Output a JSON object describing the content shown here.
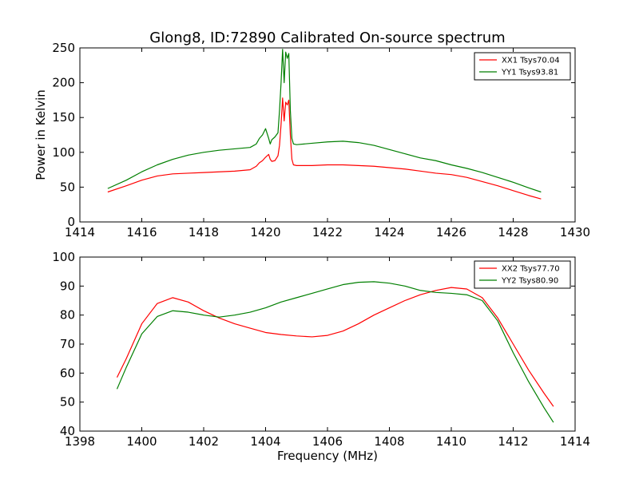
{
  "figure_title": "Glong8, ID:72890 Calibrated On-source spectrum",
  "colors": {
    "red": "#ff0000",
    "green": "#007f00",
    "axis": "#000000"
  },
  "chart_data": [
    {
      "type": "line",
      "title": "Glong8, ID:72890 Calibrated On-source spectrum",
      "xlabel": "",
      "ylabel": "Power in Kelvin",
      "xlim": [
        1414,
        1430
      ],
      "ylim": [
        0,
        250
      ],
      "xticks": [
        1414,
        1416,
        1418,
        1420,
        1422,
        1424,
        1426,
        1428,
        1430
      ],
      "yticks": [
        0,
        50,
        100,
        150,
        200,
        250
      ],
      "grid": false,
      "legend_position": "top-right",
      "series": [
        {
          "name": "XX1 Tsys70.04",
          "color": "#ff0000",
          "x": [
            1414.9,
            1415.5,
            1416.0,
            1416.5,
            1417.0,
            1417.5,
            1418.0,
            1418.5,
            1419.0,
            1419.5,
            1419.7,
            1419.8,
            1419.9,
            1420.0,
            1420.1,
            1420.15,
            1420.2,
            1420.3,
            1420.4,
            1420.45,
            1420.5,
            1420.55,
            1420.6,
            1420.65,
            1420.7,
            1420.75,
            1420.8,
            1420.85,
            1420.9,
            1421.0,
            1421.5,
            1422.0,
            1422.5,
            1423.0,
            1423.5,
            1424.0,
            1424.5,
            1425.0,
            1425.5,
            1426.0,
            1426.5,
            1427.0,
            1427.5,
            1428.0,
            1428.5,
            1428.9
          ],
          "y": [
            43,
            52,
            60,
            66,
            69,
            70,
            71,
            72,
            73,
            75,
            80,
            85,
            88,
            93,
            97,
            90,
            87,
            88,
            95,
            110,
            140,
            178,
            145,
            172,
            168,
            175,
            125,
            90,
            82,
            81,
            81,
            82,
            82,
            81,
            80,
            78,
            76,
            73,
            70,
            68,
            64,
            58,
            52,
            45,
            38,
            33
          ]
        },
        {
          "name": "YY1 Tsys93.81",
          "color": "#007f00",
          "x": [
            1414.9,
            1415.5,
            1416.0,
            1416.5,
            1417.0,
            1417.5,
            1418.0,
            1418.5,
            1419.0,
            1419.5,
            1419.7,
            1419.8,
            1419.9,
            1420.0,
            1420.1,
            1420.15,
            1420.2,
            1420.3,
            1420.4,
            1420.45,
            1420.5,
            1420.55,
            1420.6,
            1420.65,
            1420.7,
            1420.75,
            1420.8,
            1420.85,
            1420.9,
            1421.0,
            1421.5,
            1422.0,
            1422.5,
            1423.0,
            1423.5,
            1424.0,
            1424.5,
            1425.0,
            1425.5,
            1426.0,
            1426.5,
            1427.0,
            1427.5,
            1428.0,
            1428.5,
            1428.9
          ],
          "y": [
            48,
            60,
            72,
            82,
            90,
            96,
            100,
            103,
            105,
            107,
            112,
            120,
            125,
            134,
            120,
            112,
            118,
            122,
            128,
            160,
            200,
            248,
            200,
            244,
            235,
            242,
            160,
            120,
            112,
            111,
            113,
            115,
            116,
            114,
            110,
            104,
            98,
            92,
            88,
            82,
            77,
            71,
            64,
            57,
            49,
            43
          ]
        }
      ]
    },
    {
      "type": "line",
      "title": "",
      "xlabel": "Frequency (MHz)",
      "ylabel": "",
      "xlim": [
        1398,
        1414
      ],
      "ylim": [
        40,
        100
      ],
      "xticks": [
        1398,
        1400,
        1402,
        1404,
        1406,
        1408,
        1410,
        1412,
        1414
      ],
      "yticks": [
        40,
        50,
        60,
        70,
        80,
        90,
        100
      ],
      "grid": false,
      "legend_position": "top-right",
      "series": [
        {
          "name": "XX2 Tsys77.70",
          "color": "#ff0000",
          "x": [
            1399.2,
            1399.5,
            1400.0,
            1400.5,
            1401.0,
            1401.5,
            1402.0,
            1402.5,
            1403.0,
            1403.5,
            1404.0,
            1404.5,
            1405.0,
            1405.5,
            1406.0,
            1406.5,
            1407.0,
            1407.5,
            1408.0,
            1408.5,
            1409.0,
            1409.5,
            1410.0,
            1410.5,
            1411.0,
            1411.5,
            1412.0,
            1412.5,
            1413.0,
            1413.3
          ],
          "y": [
            58.5,
            65,
            77,
            84,
            86,
            84.5,
            81.5,
            79,
            77,
            75.5,
            74,
            73.3,
            72.8,
            72.5,
            73,
            74.5,
            77,
            80,
            82.5,
            85,
            87,
            88.5,
            89.5,
            89,
            86,
            79,
            70,
            61,
            53,
            48.5
          ]
        },
        {
          "name": "YY2 Tsys80.90",
          "color": "#007f00",
          "x": [
            1399.2,
            1399.5,
            1400.0,
            1400.5,
            1401.0,
            1401.5,
            1402.0,
            1402.5,
            1403.0,
            1403.5,
            1404.0,
            1404.5,
            1405.0,
            1405.5,
            1406.0,
            1406.5,
            1407.0,
            1407.5,
            1408.0,
            1408.5,
            1409.0,
            1409.5,
            1410.0,
            1410.5,
            1411.0,
            1411.5,
            1412.0,
            1412.5,
            1413.0,
            1413.3
          ],
          "y": [
            54.5,
            62,
            73.5,
            79.5,
            81.5,
            81,
            80,
            79.3,
            80,
            81,
            82.5,
            84.5,
            86,
            87.5,
            89,
            90.5,
            91.3,
            91.5,
            91,
            90,
            88.5,
            87.8,
            87.5,
            87,
            85,
            78,
            67,
            57,
            48,
            43
          ]
        }
      ]
    }
  ]
}
